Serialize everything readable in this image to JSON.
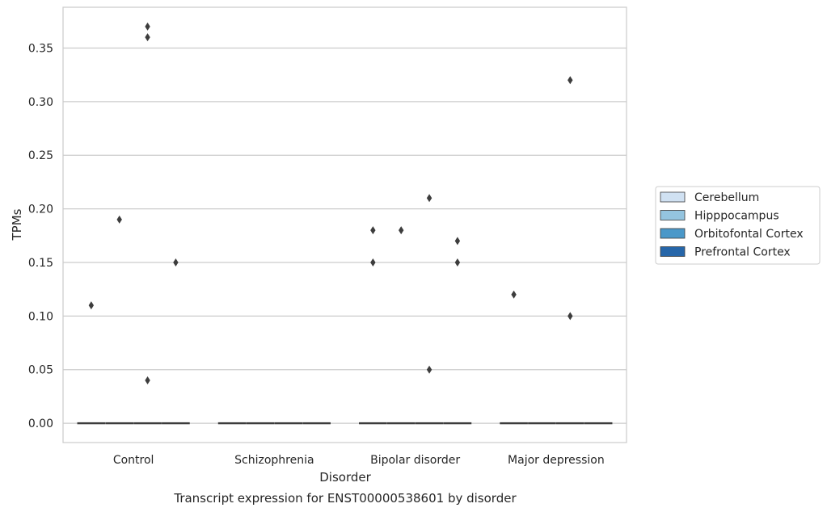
{
  "chart_data": {
    "type": "boxplot",
    "title": "",
    "caption": "Transcript expression for ENST00000538601 by disorder",
    "xlabel": "Disorder",
    "ylabel": "TPMs",
    "ylim": [
      -0.018,
      0.388
    ],
    "yticks": [
      "0.00",
      "0.05",
      "0.10",
      "0.15",
      "0.20",
      "0.25",
      "0.30",
      "0.35"
    ],
    "grid": "horizontal",
    "legend_position": "outside-right",
    "categories": [
      "Control",
      "Schizophrenia",
      "Bipolar disorder",
      "Major depression"
    ],
    "series": [
      {
        "name": "Cerebellum",
        "color": "#d0e1f2",
        "medians": [
          0,
          0,
          0,
          0
        ],
        "outliers": [
          [
            0.11
          ],
          [],
          [
            0.15,
            0.18
          ],
          [
            0.12
          ]
        ]
      },
      {
        "name": "Hipppocampus",
        "color": "#94c4df",
        "medians": [
          0,
          0,
          0,
          0
        ],
        "outliers": [
          [
            0.19
          ],
          [],
          [
            0.18
          ],
          []
        ]
      },
      {
        "name": "Orbitofontal Cortex",
        "color": "#4a98c9",
        "medians": [
          0,
          0,
          0,
          0
        ],
        "outliers": [
          [
            0.37,
            0.36,
            0.04
          ],
          [],
          [
            0.21,
            0.05
          ],
          [
            0.32,
            0.1
          ]
        ]
      },
      {
        "name": "Prefrontal Cortex",
        "color": "#2666a9",
        "medians": [
          0,
          0,
          0,
          0
        ],
        "outliers": [
          [
            0.15
          ],
          [],
          [
            0.17,
            0.15
          ],
          []
        ]
      }
    ]
  }
}
